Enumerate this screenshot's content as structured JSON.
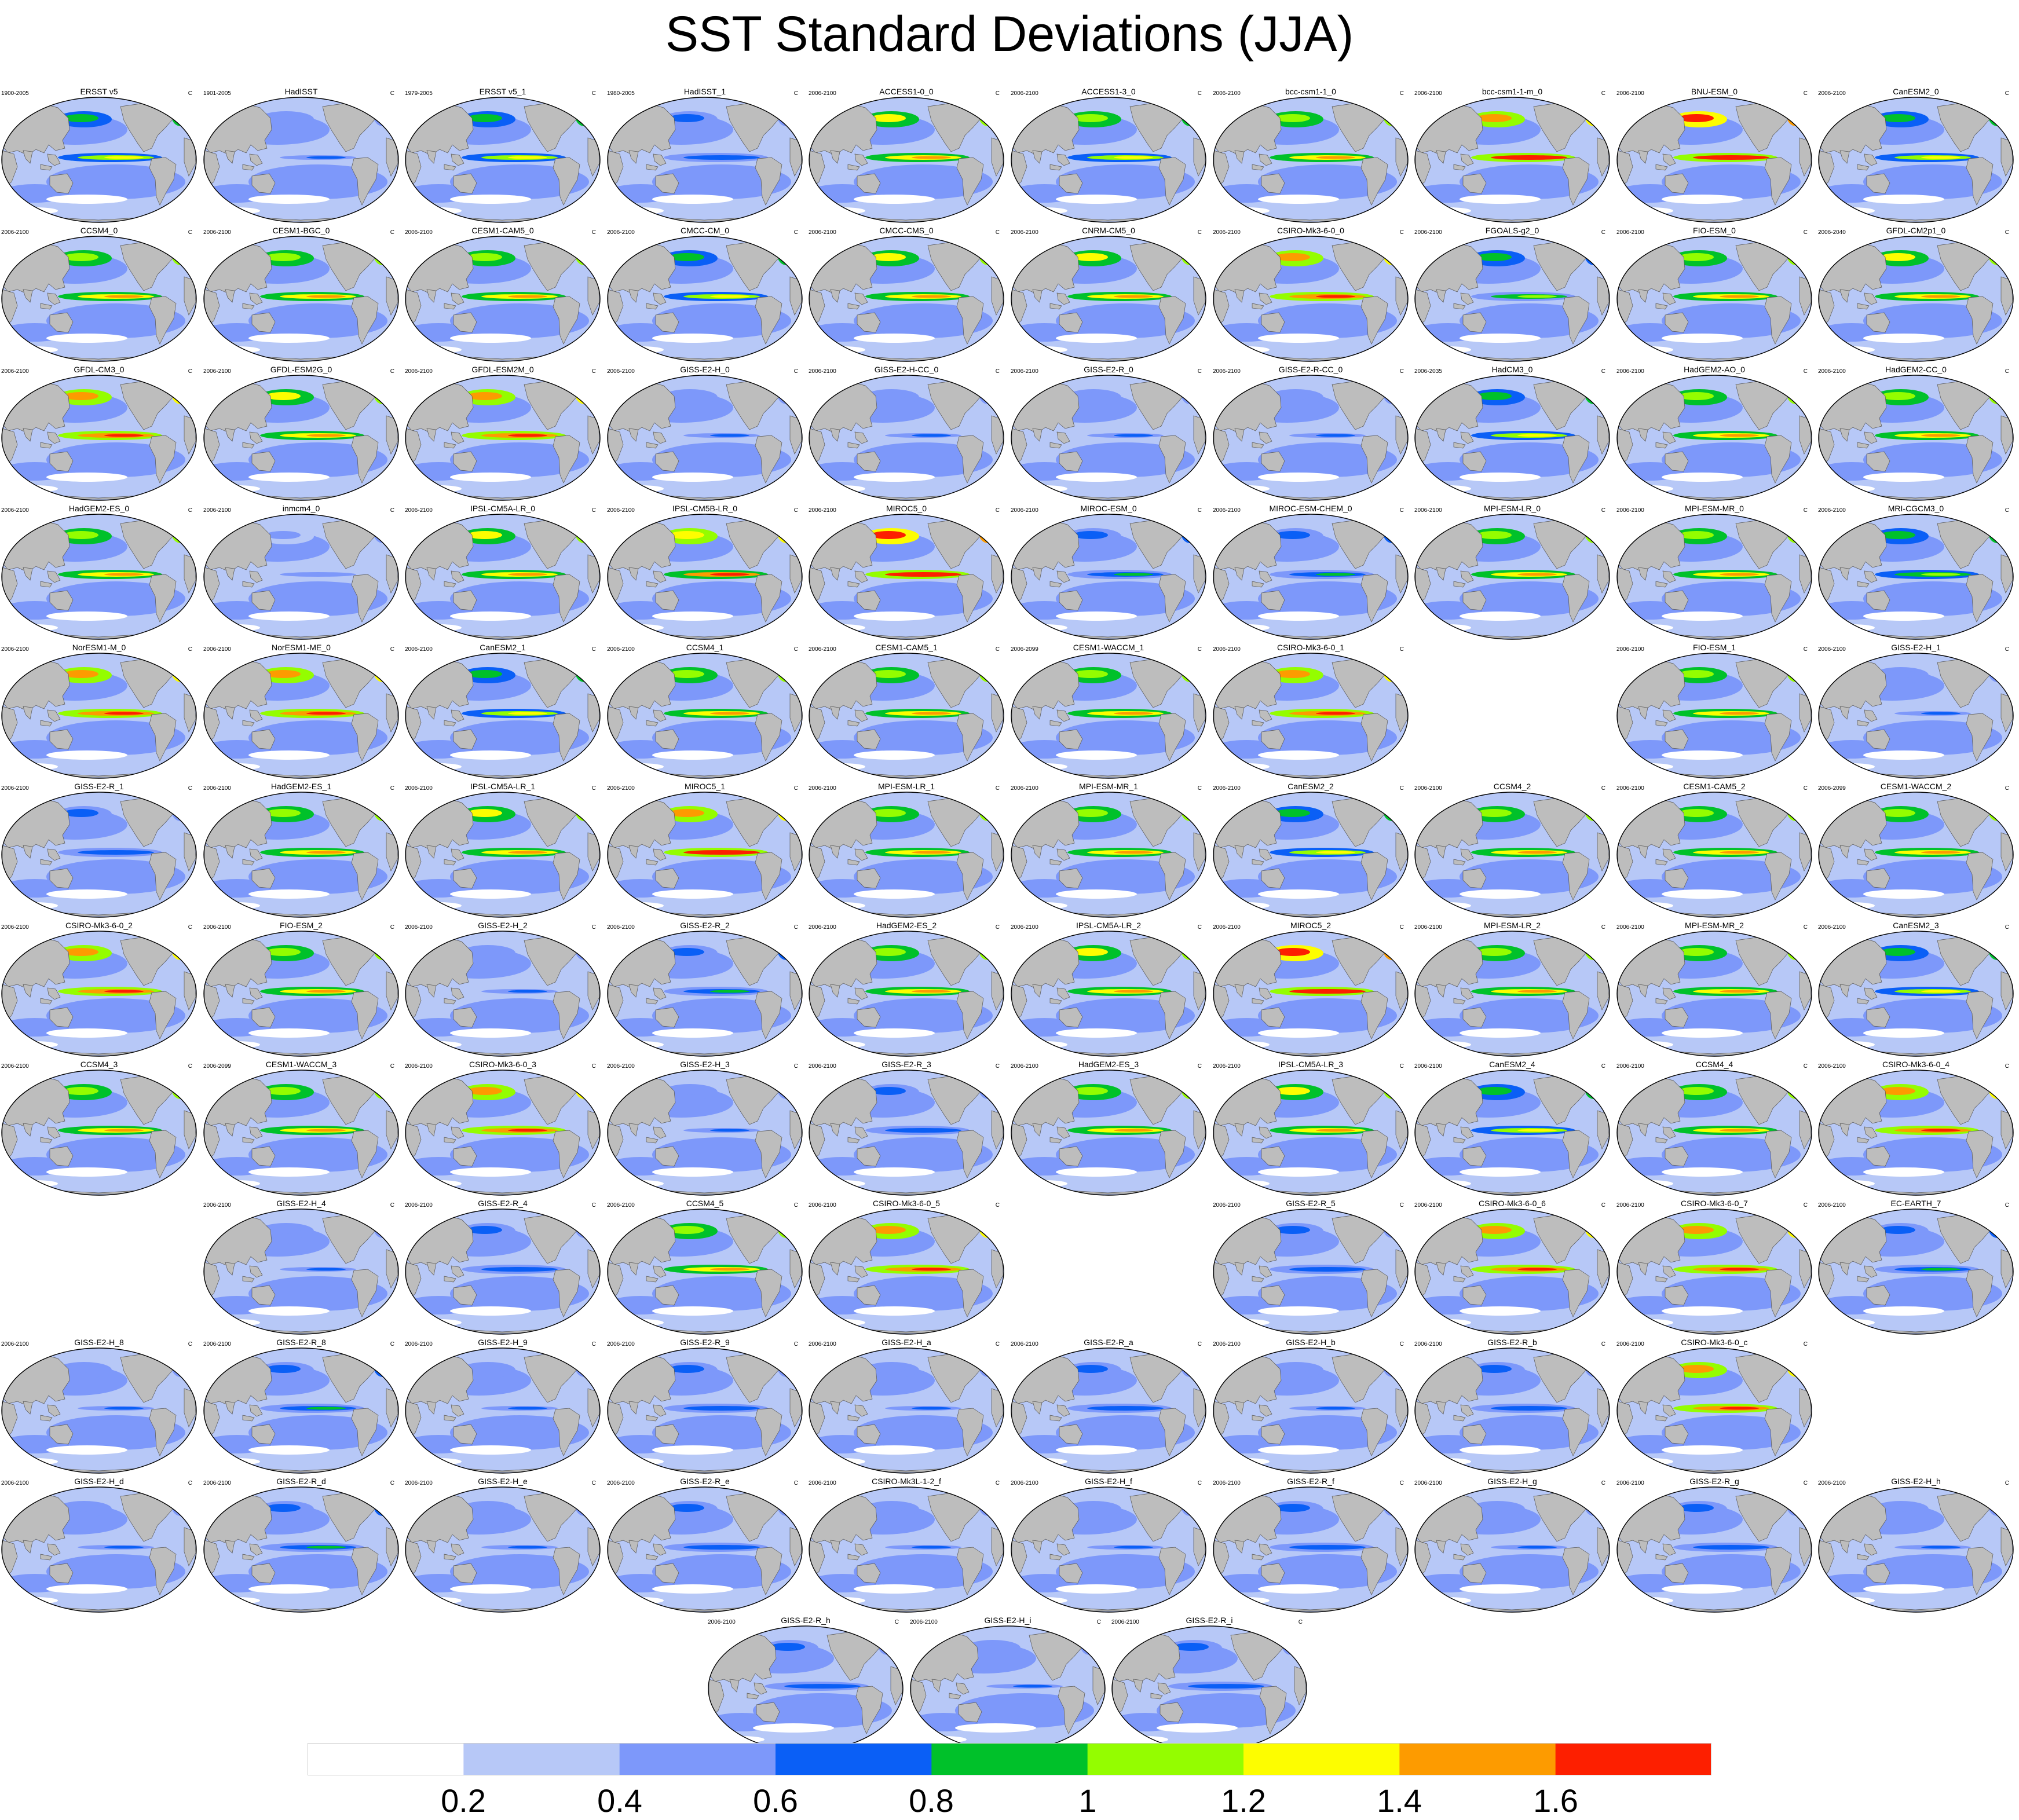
{
  "title": "SST Standard Deviations (JJA)",
  "unit": "C",
  "colors": {
    "land": "#bdbdbd",
    "levels": [
      "#ffffff",
      "#b7c8f7",
      "#7d98fa",
      "#0a5ff6",
      "#00c12a",
      "#94fd00",
      "#fdfd00",
      "#fd9b00",
      "#fd1f00"
    ]
  },
  "colorbar": {
    "labels": [
      "0.2",
      "0.4",
      "0.6",
      "0.8",
      "1",
      "1.2",
      "1.4",
      "1.6"
    ]
  },
  "map_data": {
    "projection": "robinson",
    "variable": "SST standard deviation",
    "season": "JJA",
    "contour_levels": [
      0.2,
      0.4,
      0.6,
      0.8,
      1.0,
      1.2,
      1.4,
      1.6
    ]
  },
  "panels": [
    {
      "row": 0,
      "col": 0,
      "name": "ERSST v5",
      "years": "1900-2005",
      "intensity": 1.1
    },
    {
      "row": 0,
      "col": 1,
      "name": "HadISST",
      "years": "1901-2005",
      "intensity": 0.6
    },
    {
      "row": 0,
      "col": 2,
      "name": "ERSST v5_1",
      "years": "1979-2005",
      "intensity": 1.1
    },
    {
      "row": 0,
      "col": 3,
      "name": "HadISST_1",
      "years": "1980-2005",
      "intensity": 0.7
    },
    {
      "row": 0,
      "col": 4,
      "name": "ACCESS1-0_0",
      "years": "2006-2100",
      "intensity": 1.4
    },
    {
      "row": 0,
      "col": 5,
      "name": "ACCESS1-3_0",
      "years": "2006-2100",
      "intensity": 1.2
    },
    {
      "row": 0,
      "col": 6,
      "name": "bcc-csm1-1_0",
      "years": "2006-2100",
      "intensity": 1.3
    },
    {
      "row": 0,
      "col": 7,
      "name": "bcc-csm1-1-m_0",
      "years": "2006-2100",
      "intensity": 1.7
    },
    {
      "row": 0,
      "col": 8,
      "name": "BNU-ESM_0",
      "years": "2006-2100",
      "intensity": 1.8
    },
    {
      "row": 0,
      "col": 9,
      "name": "CanESM2_0",
      "years": "2006-2100",
      "intensity": 1.1
    },
    {
      "row": 1,
      "col": 0,
      "name": "CCSM4_0",
      "years": "2006-2100",
      "intensity": 1.3
    },
    {
      "row": 1,
      "col": 1,
      "name": "CESM1-BGC_0",
      "years": "2006-2100",
      "intensity": 1.3
    },
    {
      "row": 1,
      "col": 2,
      "name": "CESM1-CAM5_0",
      "years": "2006-2100",
      "intensity": 1.3
    },
    {
      "row": 1,
      "col": 3,
      "name": "CMCC-CM_0",
      "years": "2006-2100",
      "intensity": 1.1
    },
    {
      "row": 1,
      "col": 4,
      "name": "CMCC-CMS_0",
      "years": "2006-2100",
      "intensity": 1.4
    },
    {
      "row": 1,
      "col": 5,
      "name": "CNRM-CM5_0",
      "years": "2006-2100",
      "intensity": 1.4
    },
    {
      "row": 1,
      "col": 6,
      "name": "CSIRO-Mk3-6-0_0",
      "years": "2006-2100",
      "intensity": 1.6
    },
    {
      "row": 1,
      "col": 7,
      "name": "FGOALS-g2_0",
      "years": "2006-2100",
      "intensity": 0.9
    },
    {
      "row": 1,
      "col": 8,
      "name": "FIO-ESM_0",
      "years": "2006-2100",
      "intensity": 1.3
    },
    {
      "row": 1,
      "col": 9,
      "name": "GFDL-CM2p1_0",
      "years": "2006-2040",
      "intensity": 1.4
    },
    {
      "row": 2,
      "col": 0,
      "name": "GFDL-CM3_0",
      "years": "2006-2100",
      "intensity": 1.6
    },
    {
      "row": 2,
      "col": 1,
      "name": "GFDL-ESM2G_0",
      "years": "2006-2100",
      "intensity": 1.4
    },
    {
      "row": 2,
      "col": 2,
      "name": "GFDL-ESM2M_0",
      "years": "2006-2100",
      "intensity": 1.6
    },
    {
      "row": 2,
      "col": 3,
      "name": "GISS-E2-H_0",
      "years": "2006-2100",
      "intensity": 0.6
    },
    {
      "row": 2,
      "col": 4,
      "name": "GISS-E2-H-CC_0",
      "years": "2006-2100",
      "intensity": 0.6
    },
    {
      "row": 2,
      "col": 5,
      "name": "GISS-E2-R_0",
      "years": "2006-2100",
      "intensity": 0.6
    },
    {
      "row": 2,
      "col": 6,
      "name": "GISS-E2-R-CC_0",
      "years": "2006-2100",
      "intensity": 0.6
    },
    {
      "row": 2,
      "col": 7,
      "name": "HadCM3_0",
      "years": "2006-2035",
      "intensity": 1.1
    },
    {
      "row": 2,
      "col": 8,
      "name": "HadGEM2-AO_0",
      "years": "2006-2100",
      "intensity": 1.3
    },
    {
      "row": 2,
      "col": 9,
      "name": "HadGEM2-CC_0",
      "years": "2006-2100",
      "intensity": 1.3
    },
    {
      "row": 3,
      "col": 0,
      "name": "HadGEM2-ES_0",
      "years": "2006-2100",
      "intensity": 1.3
    },
    {
      "row": 3,
      "col": 1,
      "name": "inmcm4_0",
      "years": "2006-2100",
      "intensity": 0.5
    },
    {
      "row": 3,
      "col": 2,
      "name": "IPSL-CM5A-LR_0",
      "years": "2006-2100",
      "intensity": 1.4
    },
    {
      "row": 3,
      "col": 3,
      "name": "IPSL-CM5B-LR_0",
      "years": "2006-2100",
      "intensity": 1.5
    },
    {
      "row": 3,
      "col": 4,
      "name": "MIROC5_0",
      "years": "2006-2100",
      "intensity": 1.8
    },
    {
      "row": 3,
      "col": 5,
      "name": "MIROC-ESM_0",
      "years": "2006-2100",
      "intensity": 0.8
    },
    {
      "row": 3,
      "col": 6,
      "name": "MIROC-ESM-CHEM_0",
      "years": "2006-2100",
      "intensity": 0.8
    },
    {
      "row": 3,
      "col": 7,
      "name": "MPI-ESM-LR_0",
      "years": "2006-2100",
      "intensity": 1.3
    },
    {
      "row": 3,
      "col": 8,
      "name": "MPI-ESM-MR_0",
      "years": "2006-2100",
      "intensity": 1.3
    },
    {
      "row": 3,
      "col": 9,
      "name": "MRI-CGCM3_0",
      "years": "2006-2100",
      "intensity": 1.0
    },
    {
      "row": 4,
      "col": 0,
      "name": "NorESM1-M_0",
      "years": "2006-2100",
      "intensity": 1.6
    },
    {
      "row": 4,
      "col": 1,
      "name": "NorESM1-ME_0",
      "years": "2006-2100",
      "intensity": 1.6
    },
    {
      "row": 4,
      "col": 2,
      "name": "CanESM2_1",
      "years": "2006-2100",
      "intensity": 1.1
    },
    {
      "row": 4,
      "col": 3,
      "name": "CCSM4_1",
      "years": "2006-2100",
      "intensity": 1.3
    },
    {
      "row": 4,
      "col": 4,
      "name": "CESM1-CAM5_1",
      "years": "2006-2100",
      "intensity": 1.3
    },
    {
      "row": 4,
      "col": 5,
      "name": "CESM1-WACCM_1",
      "years": "2006-2099",
      "intensity": 1.3
    },
    {
      "row": 4,
      "col": 6,
      "name": "CSIRO-Mk3-6-0_1",
      "years": "2006-2100",
      "intensity": 1.6
    },
    {
      "row": 4,
      "col": 8,
      "name": "FIO-ESM_1",
      "years": "2006-2100",
      "intensity": 1.3
    },
    {
      "row": 4,
      "col": 9,
      "name": "GISS-E2-H_1",
      "years": "2006-2100",
      "intensity": 0.6
    },
    {
      "row": 5,
      "col": 0,
      "name": "GISS-E2-R_1",
      "years": "2006-2100",
      "intensity": 0.7
    },
    {
      "row": 5,
      "col": 1,
      "name": "HadGEM2-ES_1",
      "years": "2006-2100",
      "intensity": 1.3
    },
    {
      "row": 5,
      "col": 2,
      "name": "IPSL-CM5A-LR_1",
      "years": "2006-2100",
      "intensity": 1.4
    },
    {
      "row": 5,
      "col": 3,
      "name": "MIROC5_1",
      "years": "2006-2100",
      "intensity": 1.7
    },
    {
      "row": 5,
      "col": 4,
      "name": "MPI-ESM-LR_1",
      "years": "2006-2100",
      "intensity": 1.3
    },
    {
      "row": 5,
      "col": 5,
      "name": "MPI-ESM-MR_1",
      "years": "2006-2100",
      "intensity": 1.3
    },
    {
      "row": 5,
      "col": 6,
      "name": "CanESM2_2",
      "years": "2006-2100",
      "intensity": 1.1
    },
    {
      "row": 5,
      "col": 7,
      "name": "CCSM4_2",
      "years": "2006-2100",
      "intensity": 1.3
    },
    {
      "row": 5,
      "col": 8,
      "name": "CESM1-CAM5_2",
      "years": "2006-2100",
      "intensity": 1.3
    },
    {
      "row": 5,
      "col": 9,
      "name": "CESM1-WACCM_2",
      "years": "2006-2099",
      "intensity": 1.3
    },
    {
      "row": 6,
      "col": 0,
      "name": "CSIRO-Mk3-6-0_2",
      "years": "2006-2100",
      "intensity": 1.6
    },
    {
      "row": 6,
      "col": 1,
      "name": "FIO-ESM_2",
      "years": "2006-2100",
      "intensity": 1.3
    },
    {
      "row": 6,
      "col": 2,
      "name": "GISS-E2-H_2",
      "years": "2006-2100",
      "intensity": 0.6
    },
    {
      "row": 6,
      "col": 3,
      "name": "GISS-E2-R_2",
      "years": "2006-2100",
      "intensity": 0.8
    },
    {
      "row": 6,
      "col": 4,
      "name": "HadGEM2-ES_2",
      "years": "2006-2100",
      "intensity": 1.3
    },
    {
      "row": 6,
      "col": 5,
      "name": "IPSL-CM5A-LR_2",
      "years": "2006-2100",
      "intensity": 1.4
    },
    {
      "row": 6,
      "col": 6,
      "name": "MIROC5_2",
      "years": "2006-2100",
      "intensity": 1.8
    },
    {
      "row": 6,
      "col": 7,
      "name": "MPI-ESM-LR_2",
      "years": "2006-2100",
      "intensity": 1.3
    },
    {
      "row": 6,
      "col": 8,
      "name": "MPI-ESM-MR_2",
      "years": "2006-2100",
      "intensity": 1.3
    },
    {
      "row": 6,
      "col": 9,
      "name": "CanESM2_3",
      "years": "2006-2100",
      "intensity": 1.1
    },
    {
      "row": 7,
      "col": 0,
      "name": "CCSM4_3",
      "years": "2006-2100",
      "intensity": 1.3
    },
    {
      "row": 7,
      "col": 1,
      "name": "CESM1-WACCM_3",
      "years": "2006-2099",
      "intensity": 1.3
    },
    {
      "row": 7,
      "col": 2,
      "name": "CSIRO-Mk3-6-0_3",
      "years": "2006-2100",
      "intensity": 1.6
    },
    {
      "row": 7,
      "col": 3,
      "name": "GISS-E2-H_3",
      "years": "2006-2100",
      "intensity": 0.6
    },
    {
      "row": 7,
      "col": 4,
      "name": "GISS-E2-R_3",
      "years": "2006-2100",
      "intensity": 0.7
    },
    {
      "row": 7,
      "col": 5,
      "name": "HadGEM2-ES_3",
      "years": "2006-2100",
      "intensity": 1.3
    },
    {
      "row": 7,
      "col": 6,
      "name": "IPSL-CM5A-LR_3",
      "years": "2006-2100",
      "intensity": 1.4
    },
    {
      "row": 7,
      "col": 7,
      "name": "CanESM2_4",
      "years": "2006-2100",
      "intensity": 1.1
    },
    {
      "row": 7,
      "col": 8,
      "name": "CCSM4_4",
      "years": "2006-2100",
      "intensity": 1.3
    },
    {
      "row": 7,
      "col": 9,
      "name": "CSIRO-Mk3-6-0_4",
      "years": "2006-2100",
      "intensity": 1.6
    },
    {
      "row": 8,
      "col": 1,
      "name": "GISS-E2-H_4",
      "years": "2006-2100",
      "intensity": 0.6
    },
    {
      "row": 8,
      "col": 2,
      "name": "GISS-E2-R_4",
      "years": "2006-2100",
      "intensity": 0.7
    },
    {
      "row": 8,
      "col": 3,
      "name": "CCSM4_5",
      "years": "2006-2100",
      "intensity": 1.3
    },
    {
      "row": 8,
      "col": 4,
      "name": "CSIRO-Mk3-6-0_5",
      "years": "2006-2100",
      "intensity": 1.6
    },
    {
      "row": 8,
      "col": 6,
      "name": "GISS-E2-R_5",
      "years": "2006-2100",
      "intensity": 0.7
    },
    {
      "row": 8,
      "col": 7,
      "name": "CSIRO-Mk3-6-0_6",
      "years": "2006-2100",
      "intensity": 1.6
    },
    {
      "row": 8,
      "col": 8,
      "name": "CSIRO-Mk3-6-0_7",
      "years": "2006-2100",
      "intensity": 1.6
    },
    {
      "row": 8,
      "col": 9,
      "name": "EC-EARTH_7",
      "years": "2006-2100",
      "intensity": 0.8
    },
    {
      "row": 9,
      "col": 0,
      "name": "GISS-E2-H_8",
      "years": "2006-2100",
      "intensity": 0.6
    },
    {
      "row": 9,
      "col": 1,
      "name": "GISS-E2-R_8",
      "years": "2006-2100",
      "intensity": 0.8
    },
    {
      "row": 9,
      "col": 2,
      "name": "GISS-E2-H_9",
      "years": "2006-2100",
      "intensity": 0.6
    },
    {
      "row": 9,
      "col": 3,
      "name": "GISS-E2-R_9",
      "years": "2006-2100",
      "intensity": 0.7
    },
    {
      "row": 9,
      "col": 4,
      "name": "GISS-E2-H_a",
      "years": "2006-2100",
      "intensity": 0.6
    },
    {
      "row": 9,
      "col": 5,
      "name": "GISS-E2-R_a",
      "years": "2006-2100",
      "intensity": 0.7
    },
    {
      "row": 9,
      "col": 6,
      "name": "GISS-E2-H_b",
      "years": "2006-2100",
      "intensity": 0.6
    },
    {
      "row": 9,
      "col": 7,
      "name": "GISS-E2-R_b",
      "years": "2006-2100",
      "intensity": 0.7
    },
    {
      "row": 9,
      "col": 8,
      "name": "CSIRO-Mk3-6-0_c",
      "years": "2006-2100",
      "intensity": 1.6
    },
    {
      "row": 10,
      "col": 0,
      "name": "GISS-E2-H_d",
      "years": "2006-2100",
      "intensity": 0.6
    },
    {
      "row": 10,
      "col": 1,
      "name": "GISS-E2-R_d",
      "years": "2006-2100",
      "intensity": 0.8
    },
    {
      "row": 10,
      "col": 2,
      "name": "GISS-E2-H_e",
      "years": "2006-2100",
      "intensity": 0.6
    },
    {
      "row": 10,
      "col": 3,
      "name": "GISS-E2-R_e",
      "years": "2006-2100",
      "intensity": 0.7
    },
    {
      "row": 10,
      "col": 4,
      "name": "CSIRO-Mk3L-1-2_f",
      "years": "2006-2100",
      "intensity": 0.6
    },
    {
      "row": 10,
      "col": 5,
      "name": "GISS-E2-H_f",
      "years": "2006-2100",
      "intensity": 0.6
    },
    {
      "row": 10,
      "col": 6,
      "name": "GISS-E2-R_f",
      "years": "2006-2100",
      "intensity": 0.7
    },
    {
      "row": 10,
      "col": 7,
      "name": "GISS-E2-H_g",
      "years": "2006-2100",
      "intensity": 0.6
    },
    {
      "row": 10,
      "col": 8,
      "name": "GISS-E2-R_g",
      "years": "2006-2100",
      "intensity": 0.7
    },
    {
      "row": 10,
      "col": 9,
      "name": "GISS-E2-H_h",
      "years": "2006-2100",
      "intensity": 0.6
    },
    {
      "row": 11,
      "col": 3.5,
      "name": "GISS-E2-R_h",
      "years": "2006-2100",
      "intensity": 0.7
    },
    {
      "row": 11,
      "col": 4.5,
      "name": "GISS-E2-H_i",
      "years": "2006-2100",
      "intensity": 0.6
    },
    {
      "row": 11,
      "col": 5.5,
      "name": "GISS-E2-R_i",
      "years": "2006-2100",
      "intensity": 0.7
    }
  ]
}
